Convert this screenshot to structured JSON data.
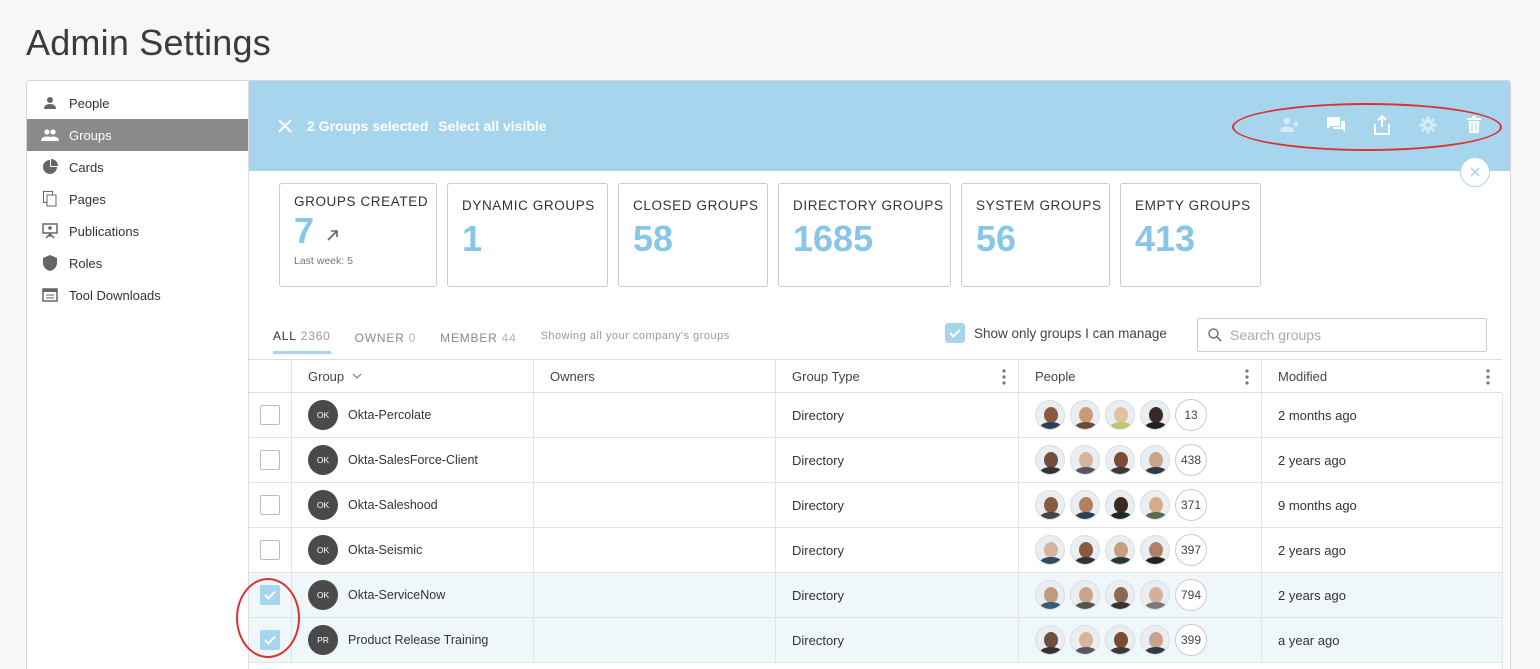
{
  "page": {
    "title": "Admin Settings"
  },
  "sidebar": {
    "items": [
      {
        "label": "People",
        "icon": "person-icon"
      },
      {
        "label": "Groups",
        "icon": "groups-icon",
        "active": true
      },
      {
        "label": "Cards",
        "icon": "pie-card-icon"
      },
      {
        "label": "Pages",
        "icon": "pages-icon"
      },
      {
        "label": "Publications",
        "icon": "presentation-icon"
      },
      {
        "label": "Roles",
        "icon": "shield-icon"
      },
      {
        "label": "Tool Downloads",
        "icon": "download-icon"
      }
    ]
  },
  "selection_bar": {
    "selected_text": "2 Groups selected",
    "select_all_text": "Select all visible",
    "bg_color": "#a8d5ee",
    "actions": [
      "add-member-icon",
      "chat-icon",
      "share-icon",
      "gear-icon",
      "trash-icon"
    ]
  },
  "stats": [
    {
      "label": "GROUPS CREATED",
      "value": "7",
      "sub": "Last week: 5"
    },
    {
      "label": "DYNAMIC GROUPS",
      "value": "1"
    },
    {
      "label": "CLOSED GROUPS",
      "value": "58"
    },
    {
      "label": "DIRECTORY GROUPS",
      "value": "1685"
    },
    {
      "label": "SYSTEM GROUPS",
      "value": "56"
    },
    {
      "label": "EMPTY GROUPS",
      "value": "413"
    }
  ],
  "tabs": [
    {
      "label": "ALL",
      "count": "2360",
      "active": true
    },
    {
      "label": "OWNER",
      "count": "0"
    },
    {
      "label": "MEMBER",
      "count": "44"
    }
  ],
  "showing_text": "Showing all your company's groups",
  "manage_filter": {
    "label": "Show only groups I can manage",
    "checked": true
  },
  "search": {
    "placeholder": "Search groups",
    "value": ""
  },
  "table": {
    "columns": [
      "Group",
      "Owners",
      "Group Type",
      "People",
      "Modified"
    ],
    "rows": [
      {
        "initials": "OK",
        "name": "Okta-Percolate",
        "owners": "",
        "type": "Directory",
        "people_count": "13",
        "modified": "2 months ago",
        "selected": false
      },
      {
        "initials": "OK",
        "name": "Okta-SalesForce-Client",
        "owners": "",
        "type": "Directory",
        "people_count": "438",
        "modified": "2 years ago",
        "selected": false
      },
      {
        "initials": "OK",
        "name": "Okta-Saleshood",
        "owners": "",
        "type": "Directory",
        "people_count": "371",
        "modified": "9 months ago",
        "selected": false
      },
      {
        "initials": "OK",
        "name": "Okta-Seismic",
        "owners": "",
        "type": "Directory",
        "people_count": "397",
        "modified": "2 years ago",
        "selected": false
      },
      {
        "initials": "OK",
        "name": "Okta-ServiceNow",
        "owners": "",
        "type": "Directory",
        "people_count": "794",
        "modified": "2 years ago",
        "selected": true
      },
      {
        "initials": "PR",
        "name": "Product Release Training",
        "owners": "",
        "type": "Directory",
        "people_count": "399",
        "modified": "a year ago",
        "selected": true
      }
    ]
  },
  "colors": {
    "accent": "#a8d5ee",
    "stat_value": "#88c6e8",
    "annotation": "#d9322f"
  }
}
